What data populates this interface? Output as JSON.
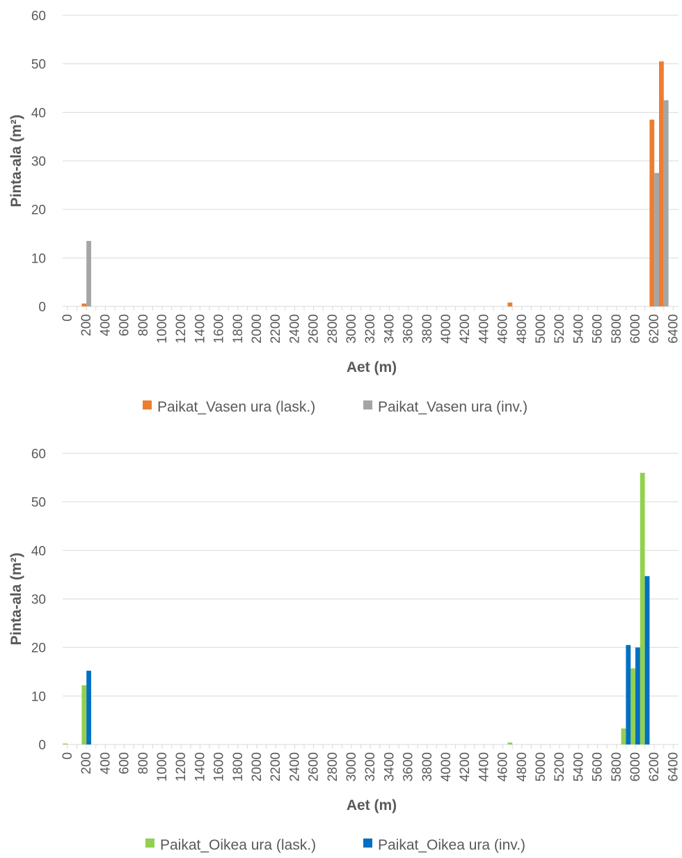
{
  "chart_data": [
    {
      "type": "bar",
      "xlabel": "Aet (m)",
      "ylabel": "Pinta-ala (m²)",
      "ylim": [
        0,
        60
      ],
      "yticks": [
        "0",
        "10",
        "20",
        "30",
        "40",
        "50",
        "60"
      ],
      "xlim": [
        0,
        6400
      ],
      "bin_width": 100,
      "xticks": [
        "0",
        "200",
        "400",
        "600",
        "800",
        "1000",
        "1200",
        "1400",
        "1600",
        "1800",
        "2000",
        "2200",
        "2400",
        "2600",
        "2800",
        "3000",
        "3200",
        "3400",
        "3600",
        "3800",
        "4000",
        "4200",
        "4400",
        "4600",
        "4800",
        "5000",
        "5200",
        "5400",
        "5600",
        "5800",
        "6000",
        "6200",
        "6400"
      ],
      "grid": true,
      "legend_position": "bottom",
      "series": [
        {
          "name": "Paikat_Vasen ura (lask.)",
          "color": "#ED7D31",
          "points": [
            {
              "x": 200,
              "y": 0.6
            },
            {
              "x": 4700,
              "y": 0.8
            },
            {
              "x": 6200,
              "y": 38.5
            },
            {
              "x": 6300,
              "y": 50.5
            }
          ]
        },
        {
          "name": "Paikat_Vasen ura (inv.)",
          "color": "#A5A5A5",
          "points": [
            {
              "x": 200,
              "y": 13.5
            },
            {
              "x": 6200,
              "y": 27.5
            },
            {
              "x": 6300,
              "y": 42.5
            }
          ]
        }
      ]
    },
    {
      "type": "bar",
      "xlabel": "Aet (m)",
      "ylabel": "Pinta-ala (m²)",
      "ylim": [
        0,
        60
      ],
      "yticks": [
        "0",
        "10",
        "20",
        "30",
        "40",
        "50",
        "60"
      ],
      "xlim": [
        0,
        6400
      ],
      "bin_width": 100,
      "xticks": [
        "0",
        "200",
        "400",
        "600",
        "800",
        "1000",
        "1200",
        "1400",
        "1600",
        "1800",
        "2000",
        "2200",
        "2400",
        "2600",
        "2800",
        "3000",
        "3200",
        "3400",
        "3600",
        "3800",
        "4000",
        "4200",
        "4400",
        "4600",
        "4800",
        "5000",
        "5200",
        "5400",
        "5600",
        "5800",
        "6000",
        "6200",
        "6400"
      ],
      "grid": true,
      "legend_position": "bottom",
      "series": [
        {
          "name": "Paikat_Oikea ura (lask.)",
          "color": "#92D050",
          "points": [
            {
              "x": 0,
              "y": 0.2
            },
            {
              "x": 200,
              "y": 12.2
            },
            {
              "x": 4700,
              "y": 0.4
            },
            {
              "x": 5900,
              "y": 3.3
            },
            {
              "x": 6000,
              "y": 15.7
            },
            {
              "x": 6100,
              "y": 56
            }
          ]
        },
        {
          "name": "Paikat_Oikea ura (inv.)",
          "color": "#0070C0",
          "points": [
            {
              "x": 200,
              "y": 15.2
            },
            {
              "x": 5900,
              "y": 20.5
            },
            {
              "x": 6000,
              "y": 20
            },
            {
              "x": 6100,
              "y": 34.7
            }
          ]
        }
      ]
    }
  ]
}
